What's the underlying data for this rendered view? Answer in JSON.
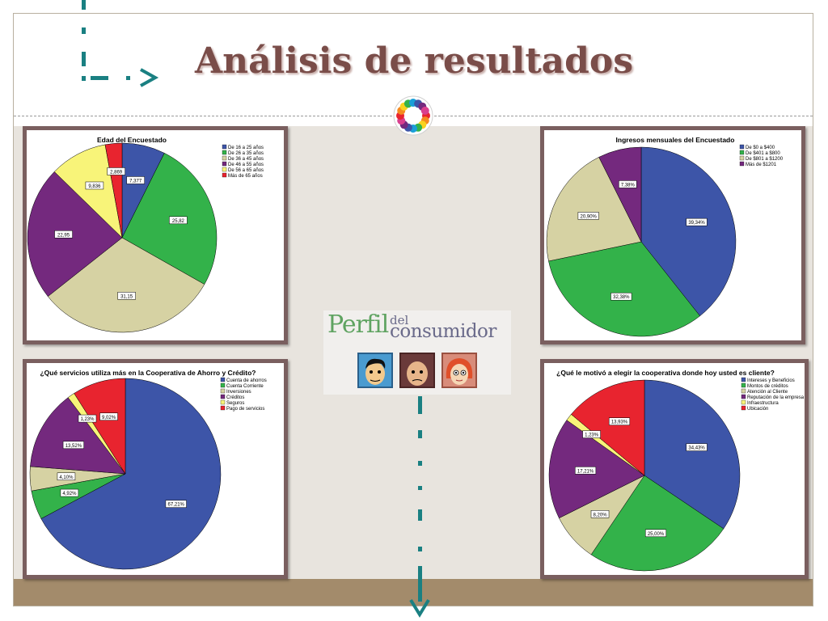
{
  "title": "Análisis de resultados",
  "colors": {
    "blue": "#3d55a8",
    "green": "#33b24a",
    "tan": "#d6d2a3",
    "purple": "#74297e",
    "yellow": "#f8f479",
    "red": "#e8242f",
    "accent_teal": "#1a8082",
    "title_color": "#7a4d49",
    "frame_border": "#7a5f5f"
  },
  "logo": {
    "word1": "Perfil",
    "word2": "del",
    "word3": "consumidor"
  },
  "chart_data": [
    {
      "type": "pie",
      "title": "Edad del Encuestado",
      "legend": [
        "De 16 a 25 años",
        "De 26 a 35 años",
        "De 36 a 45 años",
        "De 46 a 55 años",
        "De 56 a 65 años",
        "Más de 65 años"
      ],
      "values": [
        7.377,
        25.82,
        31.15,
        22.95,
        9.836,
        2.869
      ],
      "labels": [
        "7,377",
        "25,82",
        "31,15",
        "22,95",
        "9,836",
        "2,869"
      ],
      "colors": [
        "#3d55a8",
        "#33b24a",
        "#d6d2a3",
        "#74297e",
        "#f8f479",
        "#e8242f"
      ]
    },
    {
      "type": "pie",
      "title": "Ingresos mensuales del Encuestado",
      "legend": [
        "De $0 a $400",
        "De $401 a $800",
        "De $801 a $1200",
        "Más de $1201"
      ],
      "values": [
        39.34,
        32.38,
        20.9,
        7.38
      ],
      "labels": [
        "39,34%",
        "32,38%",
        "20,90%",
        "7,38%"
      ],
      "colors": [
        "#3d55a8",
        "#33b24a",
        "#d6d2a3",
        "#74297e"
      ]
    },
    {
      "type": "pie",
      "title": "¿Qué servicios utiliza más en la Cooperativa de Ahorro y Crédito?",
      "legend": [
        "Cuenta de ahorros",
        "Cuenta Corriente",
        "Inversiones",
        "Créditos",
        "Seguros",
        "Pago de servicios"
      ],
      "values": [
        67.21,
        4.92,
        4.1,
        13.52,
        1.23,
        9.02
      ],
      "labels": [
        "67,21%",
        "4,92%",
        "4,10%",
        "13,52%",
        "1,23%",
        "9,02%"
      ],
      "colors": [
        "#3d55a8",
        "#33b24a",
        "#d6d2a3",
        "#74297e",
        "#f8f479",
        "#e8242f"
      ]
    },
    {
      "type": "pie",
      "title": "¿Qué le motivó a elegir la cooperativa donde hoy usted es cliente?",
      "legend": [
        "Intereses y Beneficios",
        "Montos de créditos",
        "Atención al Cliente",
        "Reputación de la empresa",
        "Infraestructura",
        "Ubicación"
      ],
      "values": [
        34.43,
        25.0,
        8.2,
        17.21,
        1.23,
        13.93
      ],
      "labels": [
        "34,43%",
        "25,00%",
        "8,20%",
        "17,21%",
        "1,23%",
        "13,93%"
      ],
      "colors": [
        "#3d55a8",
        "#33b24a",
        "#d6d2a3",
        "#74297e",
        "#f8f479",
        "#e8242f"
      ]
    }
  ]
}
